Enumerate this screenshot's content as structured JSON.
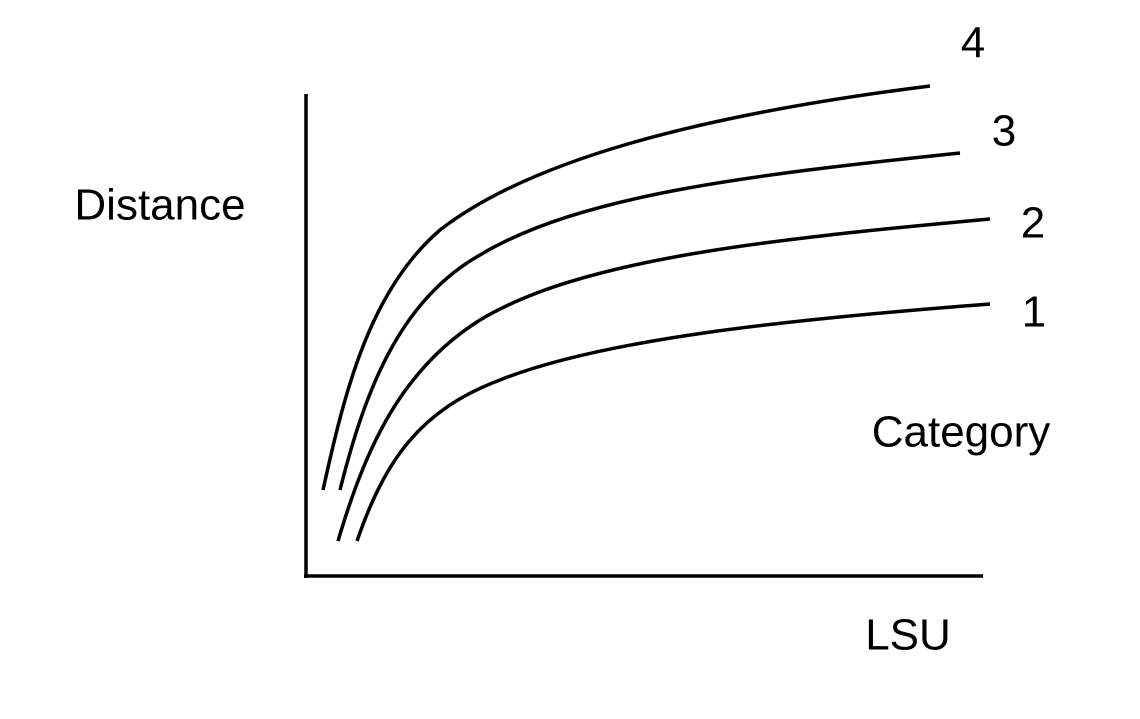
{
  "y_axis_label": "Distance",
  "x_axis_label": "LSU",
  "curve_legend_title": "Category",
  "curves": [
    {
      "label": "1"
    },
    {
      "label": "2"
    },
    {
      "label": "3"
    },
    {
      "label": "4"
    }
  ]
}
